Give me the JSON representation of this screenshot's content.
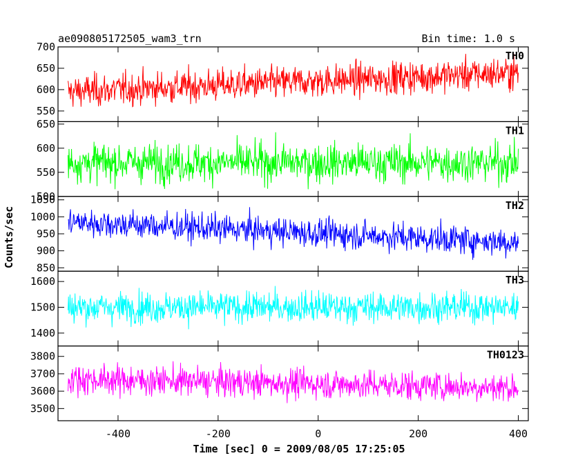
{
  "chart_data": {
    "type": "line",
    "title": "ae090805172505_wam3_trn",
    "bin_time": "Bin time: 1.0 s",
    "xlabel": "Time [sec] 0 = 2009/08/05 17:25:05",
    "ylabel": "Counts/sec",
    "xlim": [
      -520,
      420
    ],
    "x_range": [
      -500,
      400
    ],
    "x_ticks": [
      -400,
      -200,
      0,
      200,
      400
    ],
    "panels": [
      {
        "name": "TH0",
        "color": "#ff0000",
        "ylim": [
          525,
          700
        ],
        "y_ticks": [
          550,
          600,
          650,
          700
        ],
        "trend_start": 595,
        "trend_end": 640,
        "noise": 38,
        "min": 560,
        "max": 700
      },
      {
        "name": "TH1",
        "color": "#00ff00",
        "ylim": [
          500,
          655
        ],
        "y_ticks": [
          500,
          550,
          600,
          650
        ],
        "trend_start": 570,
        "trend_end": 570,
        "noise": 40,
        "min": 515,
        "max": 655
      },
      {
        "name": "TH2",
        "color": "#0000ff",
        "ylim": [
          840,
          1060
        ],
        "y_ticks": [
          850,
          900,
          950,
          1000,
          1050
        ],
        "trend_start": 985,
        "trend_end": 925,
        "noise": 42,
        "min": 840,
        "max": 1060
      },
      {
        "name": "TH3",
        "color": "#00ffff",
        "ylim": [
          1350,
          1640
        ],
        "y_ticks": [
          1400,
          1500,
          1600
        ],
        "trend_start": 1500,
        "trend_end": 1500,
        "noise": 60,
        "min": 1360,
        "max": 1640
      },
      {
        "name": "TH0123",
        "color": "#ff00ff",
        "ylim": [
          3430,
          3860
        ],
        "y_ticks": [
          3500,
          3600,
          3700,
          3800
        ],
        "trend_start": 3670,
        "trend_end": 3620,
        "noise": 85,
        "min": 3430,
        "max": 3860
      }
    ]
  }
}
